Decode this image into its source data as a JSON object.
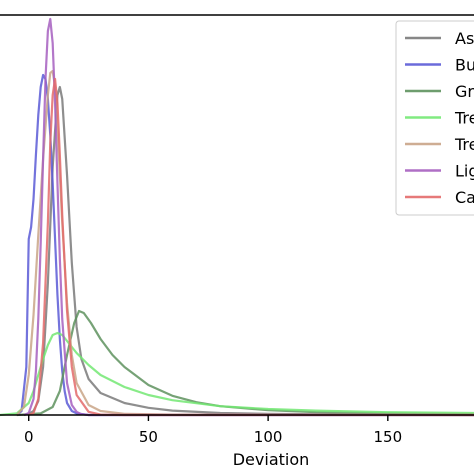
{
  "chart_data": {
    "type": "line",
    "title": "",
    "xlabel": "Deviation",
    "ylabel": "",
    "xlim": [
      -12,
      186
    ],
    "ylim": [
      0,
      1.0
    ],
    "x_ticks": [
      0,
      50,
      100,
      150
    ],
    "x_tick_labels": [
      "0",
      "50",
      "100",
      "150"
    ],
    "grid": false,
    "legend_position": "top-right",
    "series": [
      {
        "name": "As",
        "color": "#7a7a7a",
        "x": [
          -2,
          0,
          2,
          4,
          6,
          8,
          10,
          12,
          13,
          14,
          16,
          18,
          20,
          22,
          25,
          30,
          40,
          50,
          60,
          80,
          100,
          120,
          150,
          186
        ],
        "y": [
          0.0,
          0.003,
          0.01,
          0.035,
          0.12,
          0.33,
          0.62,
          0.8,
          0.82,
          0.79,
          0.6,
          0.38,
          0.22,
          0.14,
          0.09,
          0.055,
          0.03,
          0.018,
          0.011,
          0.005,
          0.003,
          0.002,
          0.001,
          0.0
        ]
      },
      {
        "name": "Bu",
        "color": "#5b5bd6",
        "x": [
          -5,
          -3,
          -1,
          0,
          1,
          2,
          3,
          4,
          5,
          6,
          7,
          8,
          9,
          10,
          11,
          12,
          13,
          14,
          15,
          16,
          18,
          20,
          25,
          30,
          50,
          186
        ],
        "y": [
          0.0,
          0.01,
          0.12,
          0.44,
          0.47,
          0.54,
          0.65,
          0.75,
          0.82,
          0.85,
          0.84,
          0.79,
          0.7,
          0.58,
          0.44,
          0.3,
          0.19,
          0.11,
          0.06,
          0.03,
          0.01,
          0.004,
          0.0,
          0.0,
          0.0,
          0.0
        ]
      },
      {
        "name": "Gr",
        "color": "#5e925e",
        "x": [
          -5,
          5,
          10,
          13,
          16,
          19,
          21,
          23,
          26,
          30,
          35,
          40,
          50,
          60,
          70,
          80,
          100,
          120,
          150,
          186
        ],
        "y": [
          0.0,
          0.004,
          0.02,
          0.06,
          0.15,
          0.23,
          0.26,
          0.255,
          0.23,
          0.19,
          0.15,
          0.12,
          0.075,
          0.048,
          0.032,
          0.022,
          0.012,
          0.007,
          0.004,
          0.002
        ]
      },
      {
        "name": "Tre",
        "color": "#73e873",
        "x": [
          -12,
          -5,
          0,
          2,
          4,
          6,
          8,
          10,
          12,
          14,
          16,
          20,
          25,
          30,
          40,
          50,
          60,
          80,
          100,
          120,
          150,
          186
        ],
        "y": [
          0.0,
          0.004,
          0.03,
          0.06,
          0.1,
          0.14,
          0.175,
          0.2,
          0.205,
          0.2,
          0.185,
          0.155,
          0.125,
          0.1,
          0.07,
          0.05,
          0.037,
          0.022,
          0.015,
          0.011,
          0.007,
          0.005
        ]
      },
      {
        "name": "Tre",
        "color": "#c9a487",
        "x": [
          -5,
          -2,
          0,
          2,
          4,
          6,
          8,
          9,
          10,
          11,
          12,
          14,
          16,
          18,
          20,
          25,
          30,
          40,
          60,
          186
        ],
        "y": [
          0.0,
          0.02,
          0.1,
          0.25,
          0.45,
          0.64,
          0.8,
          0.855,
          0.86,
          0.82,
          0.72,
          0.48,
          0.28,
          0.15,
          0.08,
          0.025,
          0.01,
          0.003,
          0.001,
          0.0
        ]
      },
      {
        "name": "Lig",
        "color": "#a65fbf",
        "x": [
          -2,
          0,
          2,
          3,
          4,
          5,
          6,
          7,
          8,
          9,
          10,
          11,
          12,
          13,
          14,
          16,
          18,
          20,
          22,
          25,
          30,
          186
        ],
        "y": [
          0.0,
          0.005,
          0.04,
          0.11,
          0.24,
          0.43,
          0.64,
          0.84,
          0.96,
          0.99,
          0.93,
          0.78,
          0.58,
          0.39,
          0.24,
          0.08,
          0.025,
          0.008,
          0.002,
          0.0,
          0.0,
          0.0
        ]
      },
      {
        "name": "Ca",
        "color": "#e36a6a",
        "x": [
          0,
          2,
          4,
          6,
          8,
          9,
          10,
          11,
          12,
          13,
          14,
          16,
          18,
          20,
          25,
          30,
          40,
          186
        ],
        "y": [
          0.0,
          0.005,
          0.04,
          0.18,
          0.48,
          0.68,
          0.8,
          0.84,
          0.78,
          0.65,
          0.5,
          0.26,
          0.12,
          0.05,
          0.008,
          0.001,
          0.0,
          0.0
        ]
      }
    ]
  }
}
